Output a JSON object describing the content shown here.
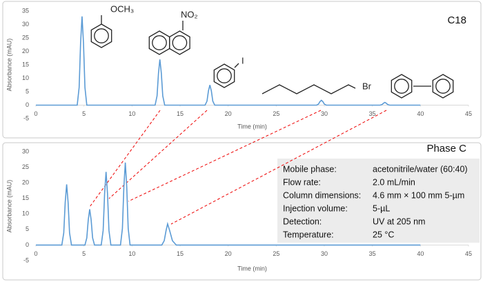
{
  "chart_data": [
    {
      "type": "line",
      "label": "C18",
      "x_label": "Time (min)",
      "y_label": "Absorbance (mAU)",
      "x": [
        0,
        4.3,
        4.5,
        4.65,
        4.8,
        4.95,
        5.1,
        5.3,
        12.4,
        12.6,
        12.75,
        12.9,
        13.05,
        13.2,
        13.4,
        17.6,
        17.8,
        17.95,
        18.1,
        18.25,
        18.4,
        18.6,
        29.2,
        29.4,
        29.55,
        29.7,
        29.85,
        30.0,
        30.2,
        35.8,
        36.0,
        36.15,
        36.3,
        36.45,
        36.6,
        36.8,
        40
      ],
      "values": [
        0,
        0,
        6.6,
        23.1,
        33,
        23.1,
        6.6,
        0,
        0,
        3.4,
        11.9,
        17,
        11.9,
        3.4,
        0,
        0,
        1.5,
        5.3,
        7.5,
        5.3,
        1.5,
        0,
        0,
        0.4,
        1.3,
        1.8,
        1.3,
        0.4,
        0,
        0,
        0.2,
        0.7,
        1,
        0.7,
        0.2,
        0,
        0
      ],
      "color": "#5b9bd5",
      "xlim": [
        0,
        45
      ],
      "xticks": [
        0,
        5,
        10,
        15,
        20,
        25,
        30,
        35,
        40,
        45
      ],
      "ylim": [
        -5,
        35
      ],
      "yticks": [
        -5,
        0,
        5,
        10,
        15,
        20,
        25,
        30,
        35
      ],
      "annotations": [
        "OCH₃",
        "NO₂",
        "I",
        "Br"
      ]
    },
    {
      "type": "line",
      "label": "Phase C",
      "x_label": "Time (min)",
      "y_label": "Absorbance (mAU)",
      "x": [
        0,
        2.7,
        2.9,
        3.05,
        3.2,
        3.35,
        3.5,
        3.7,
        5.1,
        5.3,
        5.45,
        5.6,
        5.75,
        5.9,
        6.1,
        6.8,
        7.0,
        7.15,
        7.3,
        7.45,
        7.6,
        7.8,
        8.8,
        9.0,
        9.15,
        9.3,
        9.45,
        9.6,
        9.8,
        13.1,
        13.35,
        13.55,
        13.7,
        13.9,
        14.2,
        14.6,
        40
      ],
      "values": [
        0,
        0,
        3.9,
        13.7,
        19.5,
        13.7,
        3.9,
        0,
        0,
        2.3,
        8.1,
        11.5,
        8.1,
        2.3,
        0,
        0,
        4.7,
        16.5,
        23.5,
        16.5,
        4.7,
        0,
        0,
        5.3,
        18.6,
        26.5,
        18.6,
        5.3,
        0,
        0,
        1.4,
        4.8,
        6.8,
        4.8,
        1.4,
        0,
        0
      ],
      "color": "#5b9bd5",
      "xlim": [
        0,
        45
      ],
      "xticks": [
        0,
        5,
        10,
        15,
        20,
        25,
        30,
        35,
        40,
        45
      ],
      "ylim": [
        -5,
        30
      ],
      "yticks": [
        -5,
        0,
        5,
        10,
        15,
        20,
        25,
        30
      ],
      "conditions": [
        [
          "Mobile phase:",
          "acetonitrile/water (60:40)"
        ],
        [
          "Flow rate:",
          "2.0 mL/min"
        ],
        [
          "Column dimensions:",
          "4.6 mm × 100 mm 5-µm"
        ],
        [
          "Injection volume:",
          "5-µL"
        ],
        [
          "Detection:",
          "UV at 205 nm"
        ],
        [
          "Temperature:",
          "25 °C"
        ]
      ]
    }
  ]
}
